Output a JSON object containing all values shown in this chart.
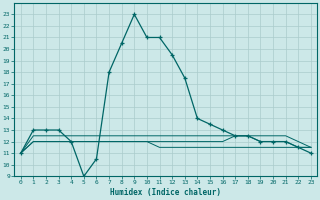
{
  "xlabel": "Humidex (Indice chaleur)",
  "xlim": [
    -0.5,
    23.5
  ],
  "ylim": [
    9,
    24
  ],
  "yticks": [
    9,
    10,
    11,
    12,
    13,
    14,
    15,
    16,
    17,
    18,
    19,
    20,
    21,
    22,
    23
  ],
  "xticks": [
    0,
    1,
    2,
    3,
    4,
    5,
    6,
    7,
    8,
    9,
    10,
    11,
    12,
    13,
    14,
    15,
    16,
    17,
    18,
    19,
    20,
    21,
    22,
    23
  ],
  "bg_color": "#cce8e8",
  "line_color": "#006666",
  "grid_color": "#aacccc",
  "curve_main": [
    11,
    13,
    13,
    13,
    12,
    9,
    10.5,
    18,
    20.5,
    23,
    21,
    21,
    19.5,
    17.5,
    14,
    13.5,
    13,
    12.5,
    12.5,
    12,
    12,
    12,
    11.5,
    11
  ],
  "curve2": [
    11,
    12.5,
    12.5,
    12.5,
    12.5,
    12.5,
    12.5,
    12.5,
    12.5,
    12.5,
    12.5,
    12.5,
    12.5,
    12.5,
    12.5,
    12.5,
    12.5,
    12.5,
    12.5,
    12.5,
    12.5,
    12.5,
    12,
    11.5
  ],
  "curve3": [
    11,
    12,
    12,
    12,
    12,
    12,
    12,
    12,
    12,
    12,
    12,
    12,
    12,
    12,
    12,
    12,
    12,
    12.5,
    12.5,
    12,
    12,
    12,
    11.5,
    11.5
  ],
  "curve4": [
    11,
    12,
    12,
    12,
    12,
    12,
    12,
    12,
    12,
    12,
    12,
    11.5,
    11.5,
    11.5,
    11.5,
    11.5,
    11.5,
    11.5,
    11.5,
    11.5,
    11.5,
    11.5,
    11.5,
    11.5
  ]
}
